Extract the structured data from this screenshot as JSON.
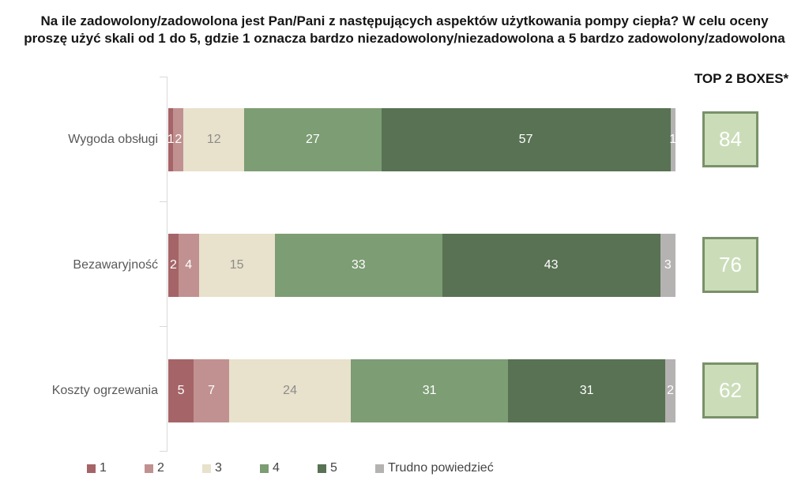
{
  "title": {
    "line1": "Na ile zadowolony/zadowolona jest Pan/Pani z następujących aspektów użytkowania pompy ciepła? W celu oceny",
    "line2": "proszę użyć skali od 1 do 5, gdzie 1 oznacza bardzo niezadowolony/niezadowolona a 5 bardzo zadowolony/zadowolona"
  },
  "top2_header": "TOP 2 BOXES*",
  "legend": [
    {
      "label": "1",
      "color": "#a56467"
    },
    {
      "label": "2",
      "color": "#c09190"
    },
    {
      "label": "3",
      "color": "#e8e1cb"
    },
    {
      "label": "4",
      "color": "#7d9d74"
    },
    {
      "label": "5",
      "color": "#587253"
    },
    {
      "label": "Trudno powiedzieć",
      "color": "#b5b2b2"
    }
  ],
  "chart_data": {
    "type": "bar",
    "orientation": "horizontal",
    "stacked": true,
    "xlim": [
      0,
      100
    ],
    "grid": false,
    "legend_position": "bottom",
    "categories": [
      "Wygoda obsługi",
      "Bezawaryjność",
      "Koszty ogrzewania"
    ],
    "series": [
      {
        "name": "1",
        "color": "#a56467",
        "label_color": "#ffffff",
        "values": [
          1,
          2,
          5
        ]
      },
      {
        "name": "2",
        "color": "#c09190",
        "label_color": "#ffffff",
        "values": [
          2,
          4,
          7
        ]
      },
      {
        "name": "3",
        "color": "#e8e1cb",
        "label_color": "#8c8c8c",
        "values": [
          12,
          15,
          24
        ]
      },
      {
        "name": "4",
        "color": "#7d9d74",
        "label_color": "#ffffff",
        "values": [
          27,
          33,
          31
        ]
      },
      {
        "name": "5",
        "color": "#587253",
        "label_color": "#ffffff",
        "values": [
          57,
          43,
          31
        ]
      },
      {
        "name": "Trudno powiedzieć",
        "color": "#b5b2b2",
        "label_color": "#ffffff",
        "values": [
          1,
          3,
          2
        ]
      }
    ],
    "top2_boxes": [
      84,
      76,
      62
    ],
    "top2_box_fill": "#cbddb8",
    "top2_box_border": "#7a9169",
    "axis_color": "#d9d9d9"
  }
}
